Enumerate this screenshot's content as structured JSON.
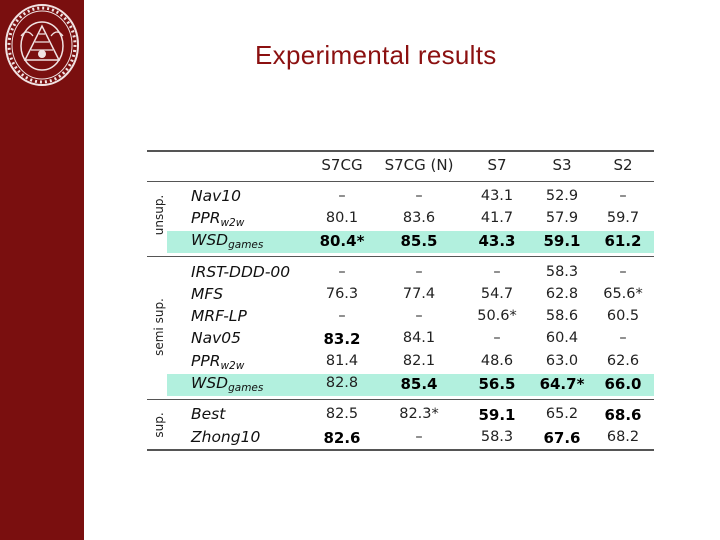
{
  "slide": {
    "title": "Experimental results"
  },
  "table": {
    "columns": [
      "S7CG",
      "S7CG (N)",
      "S7",
      "S3",
      "S2"
    ],
    "groups": [
      {
        "label": "unsup."
      },
      {
        "label": "semi sup."
      },
      {
        "label": "sup."
      }
    ],
    "rows": [
      {
        "name": "Nav10",
        "sub": "",
        "highlight": false,
        "cells": [
          {
            "v": "–",
            "b": false
          },
          {
            "v": "–",
            "b": false
          },
          {
            "v": "43.1",
            "b": false
          },
          {
            "v": "52.9",
            "b": false
          },
          {
            "v": "–",
            "b": false
          }
        ]
      },
      {
        "name": "PPR",
        "sub": "w2w",
        "highlight": false,
        "cells": [
          {
            "v": "80.1",
            "b": false
          },
          {
            "v": "83.6",
            "b": false
          },
          {
            "v": "41.7",
            "b": false
          },
          {
            "v": "57.9",
            "b": false
          },
          {
            "v": "59.7",
            "b": false
          }
        ]
      },
      {
        "name": "WSD",
        "sub": "games",
        "highlight": true,
        "cells": [
          {
            "v": "80.4*",
            "b": true
          },
          {
            "v": "85.5",
            "b": true
          },
          {
            "v": "43.3",
            "b": true
          },
          {
            "v": "59.1",
            "b": true
          },
          {
            "v": "61.2",
            "b": true
          }
        ]
      },
      {
        "name": "IRST-DDD-00",
        "sub": "",
        "highlight": false,
        "cells": [
          {
            "v": "–",
            "b": false
          },
          {
            "v": "–",
            "b": false
          },
          {
            "v": "–",
            "b": false
          },
          {
            "v": "58.3",
            "b": false
          },
          {
            "v": "–",
            "b": false
          }
        ]
      },
      {
        "name": "MFS",
        "sub": "",
        "highlight": false,
        "cells": [
          {
            "v": "76.3",
            "b": false
          },
          {
            "v": "77.4",
            "b": false
          },
          {
            "v": "54.7",
            "b": false
          },
          {
            "v": "62.8",
            "b": false
          },
          {
            "v": "65.6*",
            "b": false
          }
        ]
      },
      {
        "name": "MRF-LP",
        "sub": "",
        "highlight": false,
        "cells": [
          {
            "v": "–",
            "b": false
          },
          {
            "v": "–",
            "b": false
          },
          {
            "v": "50.6*",
            "b": false
          },
          {
            "v": "58.6",
            "b": false
          },
          {
            "v": "60.5",
            "b": false
          }
        ]
      },
      {
        "name": "Nav05",
        "sub": "",
        "highlight": false,
        "cells": [
          {
            "v": "83.2",
            "b": true
          },
          {
            "v": "84.1",
            "b": false
          },
          {
            "v": "–",
            "b": false
          },
          {
            "v": "60.4",
            "b": false
          },
          {
            "v": "–",
            "b": false
          }
        ]
      },
      {
        "name": "PPR",
        "sub": "w2w",
        "highlight": false,
        "cells": [
          {
            "v": "81.4",
            "b": false
          },
          {
            "v": "82.1",
            "b": false
          },
          {
            "v": "48.6",
            "b": false
          },
          {
            "v": "63.0",
            "b": false
          },
          {
            "v": "62.6",
            "b": false
          }
        ]
      },
      {
        "name": "WSD",
        "sub": "games",
        "highlight": true,
        "cells": [
          {
            "v": "82.8",
            "b": false
          },
          {
            "v": "85.4",
            "b": true
          },
          {
            "v": "56.5",
            "b": true
          },
          {
            "v": "64.7*",
            "b": true
          },
          {
            "v": "66.0",
            "b": true
          }
        ]
      },
      {
        "name": "Best",
        "sub": "",
        "highlight": false,
        "cells": [
          {
            "v": "82.5",
            "b": false
          },
          {
            "v": "82.3*",
            "b": false
          },
          {
            "v": "59.1",
            "b": true
          },
          {
            "v": "65.2",
            "b": false
          },
          {
            "v": "68.6",
            "b": true
          }
        ]
      },
      {
        "name": "Zhong10",
        "sub": "",
        "highlight": false,
        "cells": [
          {
            "v": "82.6",
            "b": true
          },
          {
            "v": "–",
            "b": false
          },
          {
            "v": "58.3",
            "b": false
          },
          {
            "v": "67.6",
            "b": true
          },
          {
            "v": "68.2",
            "b": false
          }
        ]
      }
    ]
  },
  "colors": {
    "sidebar": "#7a0f0f",
    "title": "#8b1010",
    "highlight": "#b2f0de"
  }
}
